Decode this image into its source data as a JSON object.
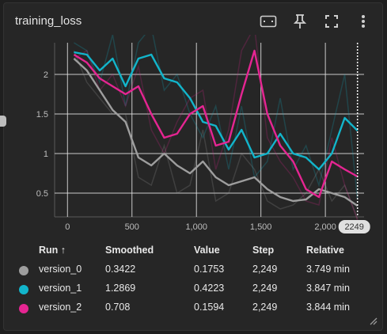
{
  "card": {
    "title": "training_loss",
    "icons": [
      "fit-domain-icon",
      "pin-icon",
      "fullscreen-icon",
      "more-vert-icon"
    ]
  },
  "chart_data": {
    "type": "line",
    "title": "",
    "xlabel": "",
    "ylabel": "",
    "xlim": [
      -100,
      2300
    ],
    "ylim": [
      0.2,
      2.4
    ],
    "x_ticks": [
      0,
      500,
      1000,
      1500,
      2000
    ],
    "x_tick_labels": [
      "0",
      "500",
      "1,000",
      "1,500",
      "2,000"
    ],
    "y_ticks": [
      0.5,
      1,
      1.5,
      2
    ],
    "y_tick_labels": [
      "0.5",
      "1",
      "1.5",
      "2"
    ],
    "grid": true,
    "hover_step": 2249,
    "hover_label": "2249",
    "series": [
      {
        "name": "version_0",
        "color": "#9e9e9e",
        "x": [
          50,
          150,
          250,
          350,
          450,
          550,
          650,
          750,
          850,
          950,
          1050,
          1150,
          1250,
          1350,
          1450,
          1550,
          1650,
          1750,
          1850,
          1950,
          2050,
          2150,
          2249
        ],
        "smoothed": [
          2.2,
          2.05,
          1.8,
          1.55,
          1.4,
          0.95,
          0.85,
          1.0,
          0.85,
          0.75,
          0.9,
          0.7,
          0.6,
          0.65,
          0.7,
          0.55,
          0.45,
          0.4,
          0.42,
          0.55,
          0.5,
          0.45,
          0.34
        ],
        "raw": [
          2.3,
          1.9,
          1.7,
          1.5,
          1.5,
          0.7,
          0.6,
          1.1,
          0.5,
          0.6,
          1.3,
          0.4,
          0.5,
          1.0,
          0.8,
          0.4,
          0.3,
          0.35,
          0.5,
          0.8,
          0.4,
          0.6,
          0.18
        ]
      },
      {
        "name": "version_1",
        "color": "#12b5cb",
        "x": [
          50,
          150,
          250,
          350,
          450,
          550,
          650,
          750,
          850,
          950,
          1050,
          1150,
          1250,
          1350,
          1450,
          1550,
          1650,
          1750,
          1850,
          1950,
          2050,
          2150,
          2249
        ],
        "smoothed": [
          2.28,
          2.25,
          2.05,
          2.2,
          1.85,
          2.2,
          2.25,
          1.95,
          1.9,
          1.7,
          1.4,
          1.35,
          1.05,
          1.3,
          0.95,
          1.0,
          1.25,
          1.0,
          0.95,
          0.8,
          1.0,
          1.45,
          1.29
        ],
        "raw": [
          2.4,
          2.3,
          1.9,
          2.5,
          1.6,
          2.4,
          2.6,
          1.8,
          2.0,
          1.5,
          1.2,
          1.6,
          0.8,
          1.6,
          0.7,
          0.9,
          1.7,
          0.8,
          1.1,
          0.6,
          1.3,
          2.0,
          0.42
        ]
      },
      {
        "name": "version_2",
        "color": "#e52592",
        "x": [
          50,
          150,
          250,
          350,
          450,
          550,
          650,
          750,
          850,
          950,
          1050,
          1150,
          1250,
          1350,
          1450,
          1550,
          1650,
          1750,
          1850,
          1950,
          2050,
          2150,
          2249
        ],
        "smoothed": [
          2.25,
          2.15,
          1.95,
          1.85,
          1.75,
          1.85,
          1.5,
          1.2,
          1.25,
          1.5,
          1.6,
          1.1,
          1.15,
          1.75,
          2.3,
          1.5,
          1.1,
          0.9,
          0.55,
          0.45,
          0.9,
          0.8,
          0.71
        ],
        "raw": [
          2.2,
          2.3,
          1.8,
          2.0,
          1.6,
          2.1,
          1.3,
          1.0,
          1.4,
          1.7,
          1.8,
          0.8,
          1.3,
          2.3,
          2.6,
          1.2,
          0.9,
          0.7,
          0.4,
          0.35,
          1.2,
          0.6,
          0.16
        ]
      }
    ]
  },
  "table": {
    "headers": {
      "run": "Run ↑",
      "smoothed": "Smoothed",
      "value": "Value",
      "step": "Step",
      "relative": "Relative"
    },
    "rows": [
      {
        "run": "version_0",
        "smoothed": "0.3422",
        "value": "0.1753",
        "step": "2,249",
        "relative": "3.749 min",
        "color": "#9e9e9e"
      },
      {
        "run": "version_1",
        "smoothed": "1.2869",
        "value": "0.4223",
        "step": "2,249",
        "relative": "3.847 min",
        "color": "#12b5cb"
      },
      {
        "run": "version_2",
        "smoothed": "0.708",
        "value": "0.1594",
        "step": "2,249",
        "relative": "3.844 min",
        "color": "#e52592"
      }
    ]
  }
}
